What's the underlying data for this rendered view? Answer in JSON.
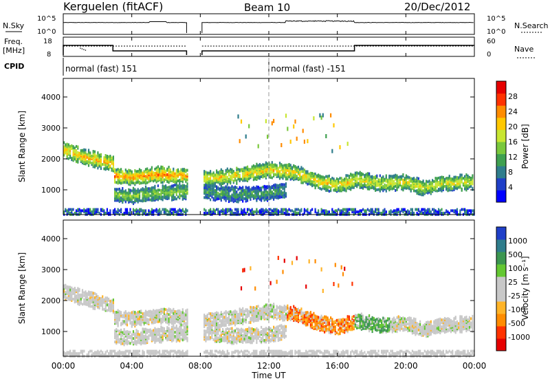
{
  "header": {
    "station": "Kerguelen (fitACF)",
    "beam": "Beam 10",
    "date": "20/Dec/2012"
  },
  "panels": {
    "nsky_label": "N.Sky",
    "nsearch_label": "N.Search",
    "freq_label_1": "Freq.",
    "freq_label_2": "[MHz]",
    "nave_label": "Nave",
    "cpid_label": "CPID",
    "nsky_ticks": [
      "10^5",
      "10^0"
    ],
    "nsearch_ticks": [
      "10^5",
      "10^0"
    ],
    "freq_ticks": [
      "18",
      "8"
    ],
    "nave_ticks": [
      "60",
      "0"
    ]
  },
  "cpid": [
    {
      "label": "normal (fast) 151",
      "start_hour": 0.0
    },
    {
      "label": "normal (fast) -151",
      "start_hour": 12.0
    }
  ],
  "colors": {
    "power": [
      "#0000ff",
      "#1f3fc8",
      "#2f7d8c",
      "#3fa050",
      "#7ac83c",
      "#c8e632",
      "#ffc800",
      "#ff8c00",
      "#ff3200",
      "#e60000"
    ],
    "velocity": [
      "#e60000",
      "#ff3200",
      "#ff8c00",
      "#ffb428",
      "#c8c8c8",
      "#c8c8c8",
      "#64c832",
      "#3c9650",
      "#2f7d8c",
      "#1f3fc8"
    ]
  },
  "chart_data": [
    {
      "type": "heatmap",
      "name": "power",
      "ylabel": "Slant Range [km]",
      "ylim": [
        200,
        4600
      ],
      "yticks": [
        1000,
        2000,
        3000,
        4000
      ],
      "colorbar_label": "Power [dB]",
      "colorbar_ticks": [
        "4",
        "8",
        "12",
        "16",
        "20",
        "24",
        "28"
      ],
      "data_gap_hours": [
        7.2,
        8.1
      ],
      "echo_bands": [
        {
          "x": [
            0.0,
            1.0,
            2.0,
            2.9
          ],
          "y": [
            2350,
            2150,
            2000,
            1900
          ],
          "value": 22
        },
        {
          "x": [
            2.9,
            4.0,
            5.5,
            7.2
          ],
          "y": [
            1500,
            1450,
            1550,
            1500
          ],
          "value": 24
        },
        {
          "x": [
            2.9,
            4.0,
            5.5,
            7.2
          ],
          "y": [
            900,
            850,
            950,
            1000
          ],
          "value": 14
        },
        {
          "x": [
            8.1,
            10.0,
            12.0,
            13.5,
            15.0,
            16.0,
            17.0
          ],
          "y": [
            1400,
            1500,
            1700,
            1600,
            1300,
            1200,
            1350
          ],
          "value": 20
        },
        {
          "x": [
            17.0,
            18.5,
            20.0,
            21.0,
            22.0,
            23.9
          ],
          "y": [
            1400,
            1250,
            1300,
            1100,
            1250,
            1300
          ],
          "value": 18
        },
        {
          "x": [
            8.1,
            10.0,
            12.0,
            13.0
          ],
          "y": [
            1000,
            900,
            950,
            1050
          ],
          "value": 10
        }
      ]
    },
    {
      "type": "heatmap",
      "name": "velocity",
      "ylabel": "Slant Range [km]",
      "xlabel": "Time UT",
      "ylim": [
        200,
        4600
      ],
      "yticks": [
        1000,
        2000,
        3000,
        4000
      ],
      "xlim": [
        0,
        24
      ],
      "xticks": [
        "00:00",
        "04:00",
        "08:00",
        "12:00",
        "16:00",
        "20:00",
        "00:00"
      ],
      "colorbar_label": "Velocity [m s⁻¹]",
      "colorbar_ticks": [
        "1000",
        "500",
        "100",
        "25",
        "-25",
        "-100",
        "-500",
        "-1000"
      ],
      "data_gap_hours": [
        7.2,
        8.1
      ]
    }
  ]
}
